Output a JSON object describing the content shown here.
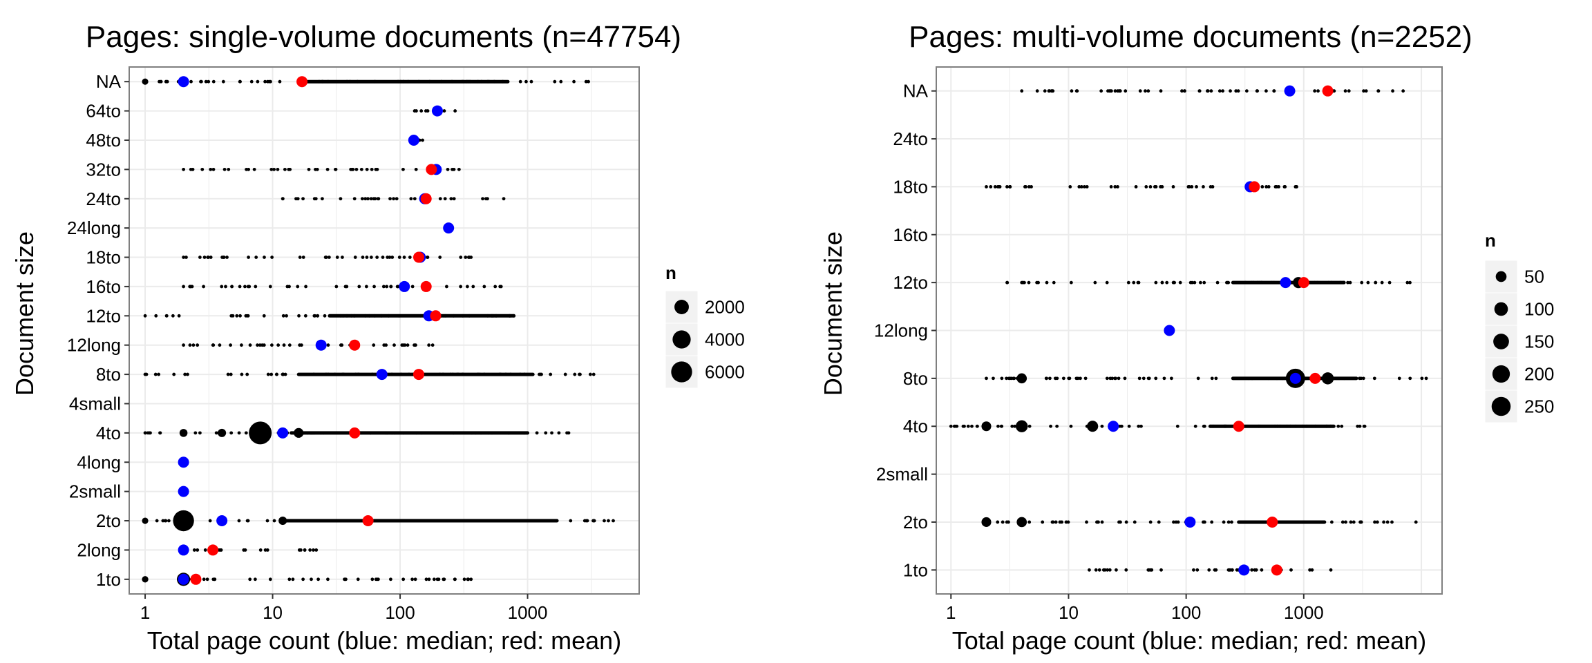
{
  "chart_data": [
    {
      "type": "scatter",
      "title": "Pages: single-volume documents (n=47754)",
      "xlabel": "Total page count (blue: median; red: mean)",
      "ylabel": "Document size",
      "x_scale": "log",
      "xlim": [
        0.75,
        7500
      ],
      "x_ticks": [
        1,
        10,
        100,
        1000
      ],
      "x_tick_labels": [
        "1",
        "10",
        "100",
        "1000"
      ],
      "grid": true,
      "categories": [
        "1to",
        "2long",
        "2to",
        "2small",
        "4long",
        "4to",
        "4small",
        "8to",
        "12long",
        "12to",
        "16to",
        "18to",
        "24long",
        "24to",
        "32to",
        "48to",
        "64to",
        "NA"
      ],
      "median": {
        "1to": 2,
        "2long": 2,
        "2to": 4,
        "2small": 2,
        "4long": 2,
        "4to": 12,
        "8to": 72,
        "12long": 24,
        "12to": 168,
        "16to": 108,
        "18to": 144,
        "24long": 240,
        "24to": 156,
        "32to": 192,
        "48to": 128,
        "64to": 196,
        "NA": 2
      },
      "mean": {
        "1to": 2.5,
        "2long": 3.4,
        "2to": 56,
        "4to": 44,
        "8to": 140,
        "12long": 44,
        "12to": 190,
        "16to": 160,
        "18to": 140,
        "24to": 160,
        "32to": 176,
        "NA": 17
      },
      "frequency_points": [
        {
          "cat": "NA",
          "x": 2,
          "n": 60
        },
        {
          "cat": "NA",
          "x": 1,
          "n": 15
        },
        {
          "cat": "1to",
          "x": 2,
          "n": 1500
        },
        {
          "cat": "1to",
          "x": 1,
          "n": 20
        },
        {
          "cat": "2to",
          "x": 2,
          "n": 6000
        },
        {
          "cat": "2to",
          "x": 4,
          "n": 350
        },
        {
          "cat": "2to",
          "x": 12,
          "n": 200
        },
        {
          "cat": "2to",
          "x": 1,
          "n": 15
        },
        {
          "cat": "4to",
          "x": 8,
          "n": 7500
        },
        {
          "cat": "4to",
          "x": 12,
          "n": 500
        },
        {
          "cat": "4to",
          "x": 16,
          "n": 450
        },
        {
          "cat": "4to",
          "x": 2,
          "n": 150
        },
        {
          "cat": "4to",
          "x": 4,
          "n": 200
        }
      ],
      "legend": {
        "title": "n",
        "position": "right",
        "labels": [
          "2000",
          "4000",
          "6000"
        ],
        "values": [
          2000,
          4000,
          6000
        ]
      },
      "colors": {
        "median": "#0000ff",
        "mean": "#ff0000",
        "count": "#000000",
        "panel": "#ffffff",
        "grid": "#ebebeb",
        "frame": "#7f7f7f"
      }
    },
    {
      "type": "scatter",
      "title": "Pages: multi-volume documents (n=2252)",
      "xlabel": "Total page count (blue: median; red: mean)",
      "ylabel": "Document size",
      "x_scale": "log",
      "xlim": [
        0.75,
        15000
      ],
      "x_ticks": [
        1,
        10,
        100,
        1000
      ],
      "x_tick_labels": [
        "1",
        "10",
        "100",
        "1000"
      ],
      "grid": true,
      "categories": [
        "1to",
        "2to",
        "2small",
        "4to",
        "8to",
        "12long",
        "12to",
        "16to",
        "18to",
        "24to",
        "NA"
      ],
      "median": {
        "1to": 310,
        "2to": 108,
        "4to": 24,
        "8to": 850,
        "12long": 72,
        "12to": 700,
        "18to": 350,
        "NA": 760
      },
      "mean": {
        "1to": 590,
        "2to": 540,
        "4to": 280,
        "8to": 1250,
        "12to": 1000,
        "18to": 380,
        "NA": 1600
      },
      "frequency_points": [
        {
          "cat": "8to",
          "x": 850,
          "n": 260
        },
        {
          "cat": "8to",
          "x": 1600,
          "n": 70
        },
        {
          "cat": "8to",
          "x": 4,
          "n": 40
        },
        {
          "cat": "4to",
          "x": 4,
          "n": 70
        },
        {
          "cat": "4to",
          "x": 16,
          "n": 55
        },
        {
          "cat": "4to",
          "x": 2,
          "n": 35
        },
        {
          "cat": "2to",
          "x": 4,
          "n": 40
        },
        {
          "cat": "2to",
          "x": 2,
          "n": 35
        },
        {
          "cat": "12to",
          "x": 900,
          "n": 55
        }
      ],
      "legend": {
        "title": "n",
        "position": "right",
        "labels": [
          "50",
          "100",
          "150",
          "200",
          "250"
        ],
        "values": [
          50,
          100,
          150,
          200,
          250
        ]
      },
      "colors": {
        "median": "#0000ff",
        "mean": "#ff0000",
        "count": "#000000",
        "panel": "#ffffff",
        "grid": "#ebebeb",
        "frame": "#7f7f7f"
      }
    }
  ]
}
